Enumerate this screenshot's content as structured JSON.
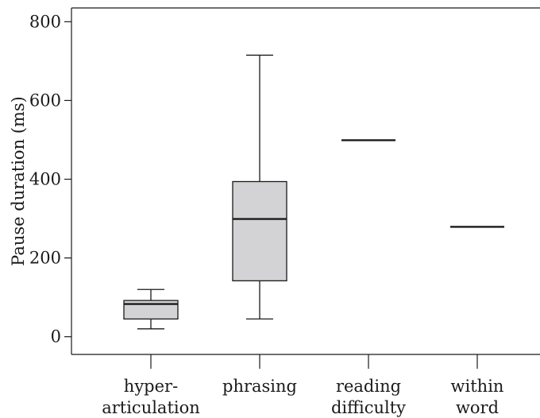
{
  "chart_data": {
    "type": "box",
    "title": "",
    "xlabel": "",
    "ylabel": "Pause duration (ms)",
    "ylim": [
      -45,
      835
    ],
    "yticks": [
      0,
      200,
      400,
      600,
      800
    ],
    "grid": false,
    "categories": [
      {
        "lines": [
          "hyper-",
          "articulation"
        ]
      },
      {
        "lines": [
          "phrasing"
        ]
      },
      {
        "lines": [
          "reading",
          "difficulty"
        ]
      },
      {
        "lines": [
          "within",
          "word"
        ]
      }
    ],
    "boxes": [
      {
        "min": 20,
        "q1": 45,
        "median": 83,
        "q3": 92,
        "max": 120
      },
      {
        "min": 45,
        "q1": 142,
        "median": 299,
        "q3": 394,
        "max": 715
      },
      {
        "min": 499,
        "q1": 499,
        "median": 499,
        "q3": 499,
        "max": 499
      },
      {
        "min": 279,
        "q1": 279,
        "median": 279,
        "q3": 279,
        "max": 279
      }
    ],
    "colors": {
      "box_fill": "#d3d3d5",
      "stroke": "#1a1a1a"
    }
  }
}
